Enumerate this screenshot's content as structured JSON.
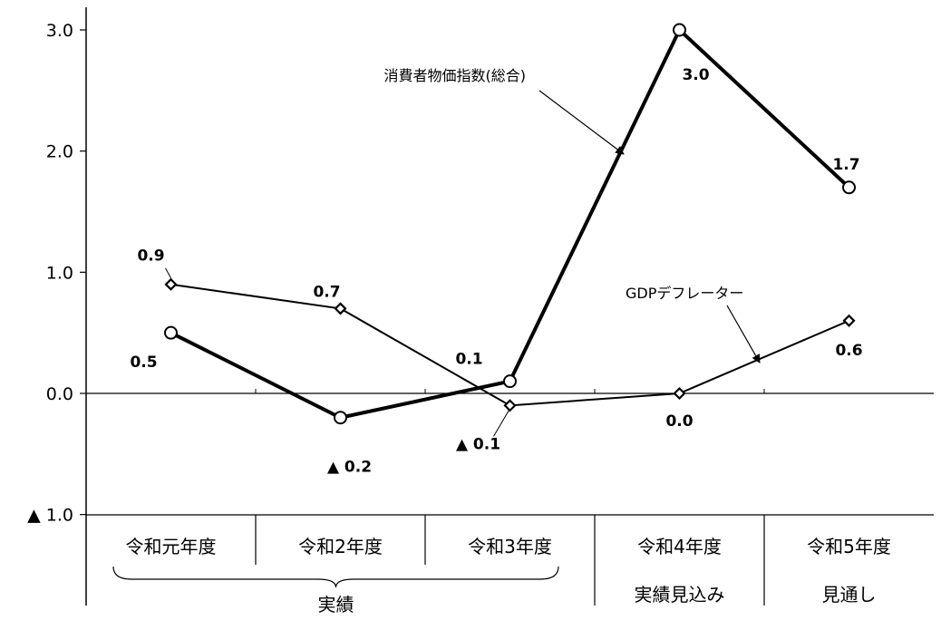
{
  "chart_data": {
    "type": "line",
    "categories": [
      "令和元年度",
      "令和2年度",
      "令和3年度",
      "令和4年度",
      "令和5年度"
    ],
    "category_sublabels": [
      "",
      "",
      "",
      "実績見込み",
      "見通し"
    ],
    "group_label": "実績",
    "ylim": [
      -1.0,
      3.0
    ],
    "yticks": [
      -1.0,
      0.0,
      1.0,
      2.0,
      3.0
    ],
    "ytick_labels": [
      "▲ 1.0",
      "0.0",
      "1.0",
      "2.0",
      "3.0"
    ],
    "grid": false,
    "series": [
      {
        "name": "消費者物価指数(総合)",
        "values": [
          0.5,
          -0.2,
          0.1,
          3.0,
          1.7
        ],
        "value_labels": [
          "0.5",
          "▲ 0.2",
          "0.1",
          "3.0",
          "1.7"
        ],
        "marker": "circle"
      },
      {
        "name": "GDPデフレーター",
        "values": [
          0.9,
          0.7,
          -0.1,
          0.0,
          0.6
        ],
        "value_labels": [
          "0.9",
          "0.7",
          "▲ 0.1",
          "0.0",
          "0.6"
        ],
        "marker": "diamond"
      }
    ]
  }
}
